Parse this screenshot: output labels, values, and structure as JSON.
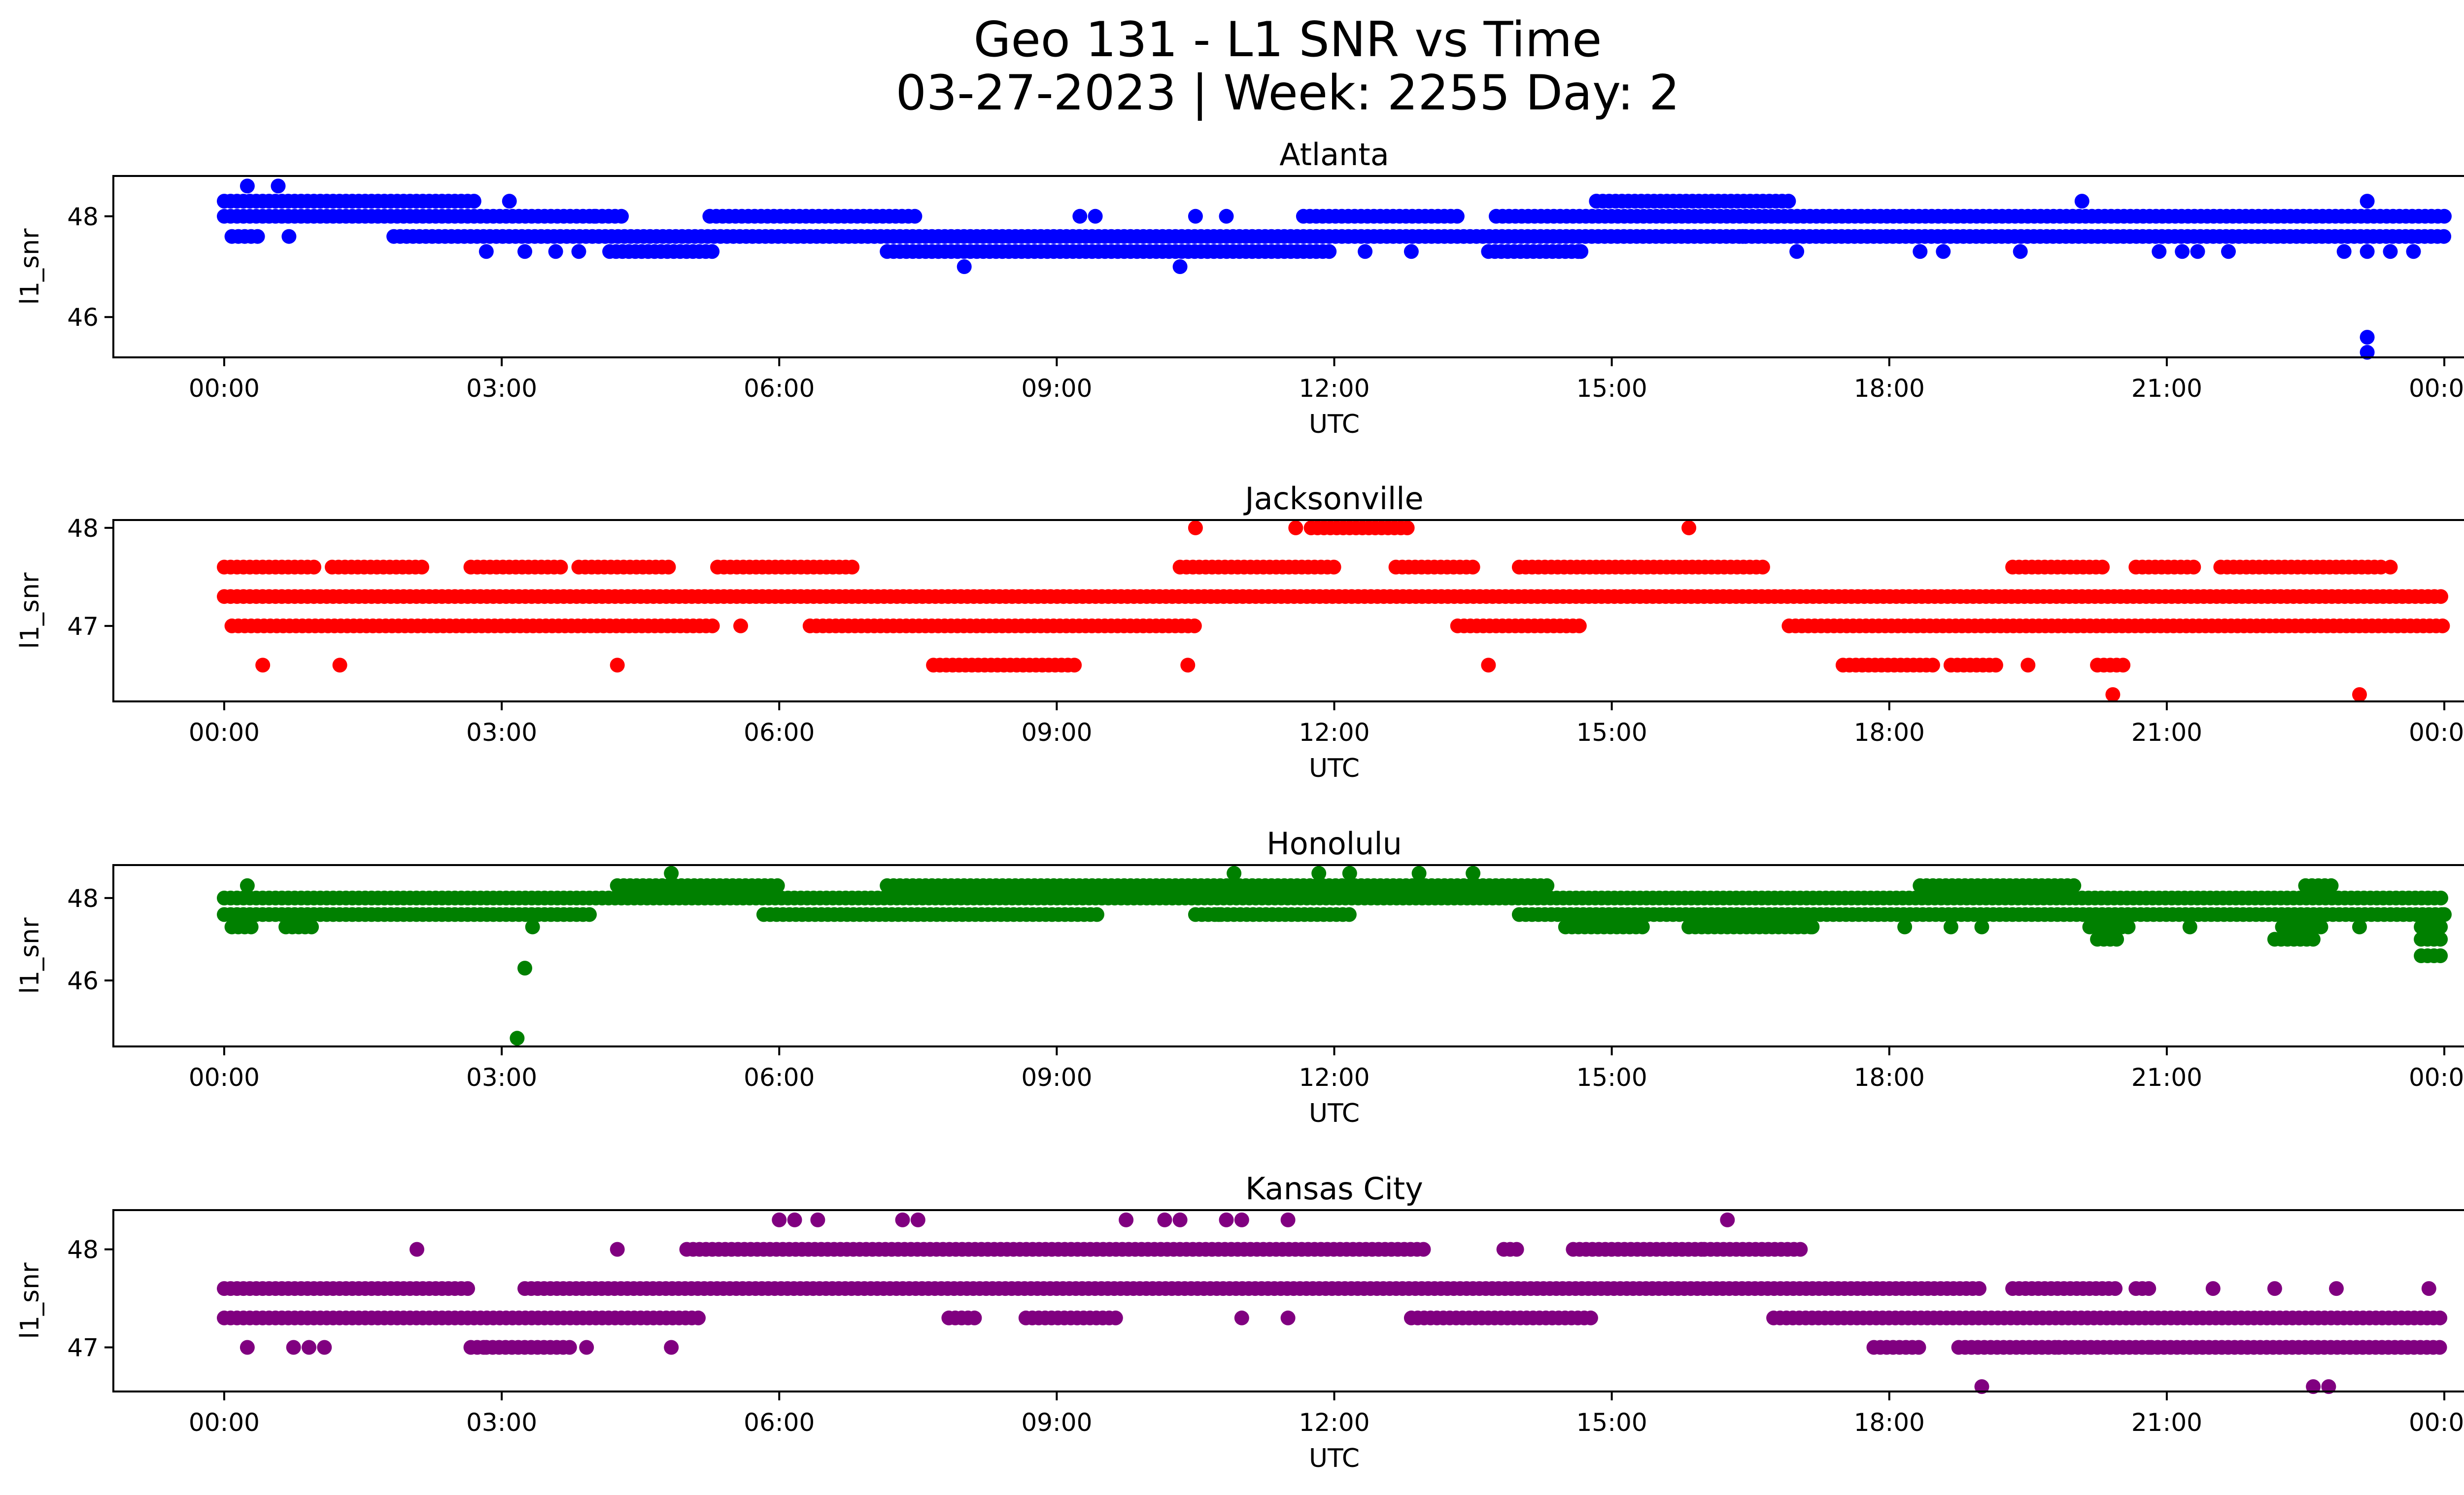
{
  "figure": {
    "title_line1": "Geo 131 - L1 SNR vs Time",
    "title_line2": "03-27-2023 | Week: 2255 Day: 2"
  },
  "chart_data": [
    {
      "type": "scatter",
      "title": "Atlanta",
      "xlabel": "UTC",
      "ylabel": "l1_snr",
      "color": "#0000ff",
      "xlim": [
        "2023-03-27T00:00",
        "2023-03-28T00:00"
      ],
      "ylim": [
        45.2,
        48.8
      ],
      "xticks": [
        "00:00",
        "03:00",
        "06:00",
        "09:00",
        "12:00",
        "15:00",
        "18:00",
        "21:00",
        "00:00"
      ],
      "yticks": [
        46,
        48
      ],
      "bands": [
        {
          "y": 48.3,
          "segments": [
            [
              "00:00",
              "02:40"
            ],
            [
              "14:50",
              "16:55"
            ]
          ]
        },
        {
          "y": 48.0,
          "segments": [
            [
              "00:00",
              "04:20"
            ],
            [
              "05:15",
              "07:30"
            ],
            [
              "11:40",
              "13:20"
            ],
            [
              "13:45",
              "24:00"
            ]
          ]
        },
        {
          "y": 47.6,
          "segments": [
            [
              "00:05",
              "00:25"
            ],
            [
              "01:50",
              "24:00"
            ]
          ]
        },
        {
          "y": 47.3,
          "segments": [
            [
              "04:10",
              "05:20"
            ],
            [
              "07:10",
              "12:00"
            ],
            [
              "13:40",
              "14:40"
            ]
          ]
        }
      ],
      "points": [
        [
          "00:15",
          48.6
        ],
        [
          "00:35",
          48.6
        ],
        [
          "00:42",
          47.6
        ],
        [
          "02:42",
          48.3
        ],
        [
          "02:50",
          47.3
        ],
        [
          "03:05",
          48.3
        ],
        [
          "03:15",
          47.3
        ],
        [
          "03:35",
          47.3
        ],
        [
          "03:50",
          47.3
        ],
        [
          "04:00",
          48.0
        ],
        [
          "08:00",
          47.0
        ],
        [
          "09:15",
          48.0
        ],
        [
          "09:25",
          48.0
        ],
        [
          "10:20",
          47.0
        ],
        [
          "10:30",
          48.0
        ],
        [
          "10:50",
          48.0
        ],
        [
          "12:20",
          47.3
        ],
        [
          "12:50",
          47.3
        ],
        [
          "14:40",
          47.3
        ],
        [
          "14:50",
          48.3
        ],
        [
          "16:25",
          47.6
        ],
        [
          "17:00",
          47.3
        ],
        [
          "18:20",
          47.3
        ],
        [
          "18:35",
          47.3
        ],
        [
          "19:25",
          47.3
        ],
        [
          "20:05",
          48.3
        ],
        [
          "20:55",
          47.3
        ],
        [
          "21:10",
          47.3
        ],
        [
          "21:20",
          47.3
        ],
        [
          "21:40",
          47.3
        ],
        [
          "22:55",
          47.3
        ],
        [
          "23:10",
          48.3
        ],
        [
          "23:10",
          47.3
        ],
        [
          "23:25",
          47.3
        ],
        [
          "23:40",
          47.3
        ],
        [
          "23:10",
          45.6
        ],
        [
          "23:10",
          45.3
        ]
      ]
    },
    {
      "type": "scatter",
      "title": "Jacksonville",
      "xlabel": "UTC",
      "ylabel": "l1_snr",
      "color": "#ff0000",
      "xlim": [
        "2023-03-27T00:00",
        "2023-03-28T00:00"
      ],
      "ylim": [
        46.23,
        48.08
      ],
      "xticks": [
        "00:00",
        "03:00",
        "06:00",
        "09:00",
        "12:00",
        "15:00",
        "18:00",
        "21:00",
        "00:00"
      ],
      "yticks": [
        47,
        48
      ],
      "bands": [
        {
          "y": 48.0,
          "segments": [
            [
              "11:45",
              "12:50"
            ]
          ]
        },
        {
          "y": 47.6,
          "segments": [
            [
              "00:00",
              "01:00"
            ],
            [
              "01:10",
              "02:10"
            ],
            [
              "02:40",
              "03:40"
            ],
            [
              "03:50",
              "04:50"
            ],
            [
              "05:20",
              "06:50"
            ],
            [
              "10:20",
              "12:00"
            ],
            [
              "12:40",
              "13:30"
            ],
            [
              "14:00",
              "16:40"
            ],
            [
              "19:20",
              "20:20"
            ],
            [
              "20:40",
              "21:20"
            ],
            [
              "21:35",
              "23:20"
            ]
          ]
        },
        {
          "y": 47.3,
          "segments": [
            [
              "00:00",
              "24:00"
            ]
          ]
        },
        {
          "y": 47.0,
          "segments": [
            [
              "00:05",
              "05:20"
            ],
            [
              "06:20",
              "10:30"
            ],
            [
              "13:20",
              "14:40"
            ],
            [
              "16:55",
              "24:00"
            ]
          ]
        },
        {
          "y": 46.6,
          "segments": [
            [
              "07:40",
              "09:15"
            ],
            [
              "17:30",
              "18:30"
            ],
            [
              "18:40",
              "19:10"
            ],
            [
              "20:15",
              "20:35"
            ]
          ]
        }
      ],
      "points": [
        [
          "00:25",
          46.6
        ],
        [
          "01:15",
          46.6
        ],
        [
          "04:15",
          46.6
        ],
        [
          "05:35",
          47.0
        ],
        [
          "10:25",
          46.6
        ],
        [
          "10:30",
          48.0
        ],
        [
          "11:35",
          48.0
        ],
        [
          "13:40",
          46.6
        ],
        [
          "15:50",
          48.0
        ],
        [
          "19:30",
          46.6
        ],
        [
          "20:25",
          46.3
        ],
        [
          "23:05",
          46.3
        ],
        [
          "23:25",
          47.6
        ]
      ]
    },
    {
      "type": "scatter",
      "title": "Honolulu",
      "xlabel": "UTC",
      "ylabel": "l1_snr",
      "color": "#008000",
      "xlim": [
        "2023-03-27T00:00",
        "2023-03-28T00:00"
      ],
      "ylim": [
        44.4,
        48.8
      ],
      "xticks": [
        "00:00",
        "03:00",
        "06:00",
        "09:00",
        "12:00",
        "15:00",
        "18:00",
        "21:00",
        "00:00"
      ],
      "yticks": [
        46,
        48
      ],
      "bands": [
        {
          "y": 48.3,
          "segments": [
            [
              "04:15",
              "06:00"
            ],
            [
              "07:10",
              "14:20"
            ],
            [
              "18:20",
              "20:00"
            ],
            [
              "22:30",
              "22:50"
            ]
          ]
        },
        {
          "y": 48.0,
          "segments": [
            [
              "00:00",
              "24:00"
            ]
          ]
        },
        {
          "y": 47.6,
          "segments": [
            [
              "00:00",
              "04:00"
            ],
            [
              "05:50",
              "09:30"
            ],
            [
              "10:30",
              "12:10"
            ],
            [
              "14:00",
              "24:00"
            ]
          ]
        },
        {
          "y": 47.3,
          "segments": [
            [
              "00:05",
              "00:20"
            ],
            [
              "00:40",
              "01:00"
            ],
            [
              "14:30",
              "15:20"
            ],
            [
              "15:50",
              "17:10"
            ],
            [
              "20:10",
              "20:35"
            ],
            [
              "22:15",
              "22:40"
            ],
            [
              "23:45",
              "24:00"
            ]
          ]
        },
        {
          "y": 47.0,
          "segments": [
            [
              "20:15",
              "20:30"
            ],
            [
              "22:10",
              "22:35"
            ],
            [
              "23:45",
              "24:00"
            ]
          ]
        },
        {
          "y": 46.6,
          "segments": [
            [
              "23:45",
              "24:00"
            ]
          ]
        }
      ],
      "points": [
        [
          "00:15",
          48.3
        ],
        [
          "04:50",
          48.6
        ],
        [
          "10:55",
          48.6
        ],
        [
          "11:50",
          48.6
        ],
        [
          "12:10",
          48.6
        ],
        [
          "12:55",
          48.6
        ],
        [
          "13:30",
          48.6
        ],
        [
          "03:15",
          46.3
        ],
        [
          "03:10",
          44.6
        ],
        [
          "03:20",
          47.3
        ],
        [
          "10:45",
          47.6
        ],
        [
          "17:10",
          47.3
        ],
        [
          "18:10",
          47.3
        ],
        [
          "18:40",
          47.3
        ],
        [
          "19:00",
          47.3
        ],
        [
          "21:15",
          47.3
        ],
        [
          "23:05",
          47.3
        ],
        [
          "24:00",
          47.6
        ]
      ]
    },
    {
      "type": "scatter",
      "title": "Kansas City",
      "xlabel": "UTC",
      "ylabel": "l1_snr",
      "color": "#800080",
      "xlim": [
        "2023-03-27T00:00",
        "2023-03-28T00:00"
      ],
      "ylim": [
        46.55,
        48.4
      ],
      "xticks": [
        "00:00",
        "03:00",
        "06:00",
        "09:00",
        "12:00",
        "15:00",
        "18:00",
        "21:00",
        "00:00"
      ],
      "yticks": [
        47,
        48
      ],
      "bands": [
        {
          "y": 48.0,
          "segments": [
            [
              "05:00",
              "13:00"
            ],
            [
              "13:50",
              "14:00"
            ],
            [
              "14:35",
              "16:00"
            ],
            [
              "16:00",
              "17:05"
            ]
          ]
        },
        {
          "y": 47.6,
          "segments": [
            [
              "00:00",
              "02:40"
            ],
            [
              "03:15",
              "19:00"
            ],
            [
              "19:20",
              "20:30"
            ],
            [
              "20:40",
              "20:50"
            ]
          ]
        },
        {
          "y": 47.3,
          "segments": [
            [
              "00:00",
              "05:10"
            ],
            [
              "07:50",
              "08:10"
            ],
            [
              "08:40",
              "09:40"
            ],
            [
              "12:50",
              "14:50"
            ],
            [
              "16:45",
              "24:00"
            ]
          ]
        },
        {
          "y": 47.0,
          "segments": [
            [
              "02:40",
              "02:50"
            ],
            [
              "02:50",
              "03:45"
            ],
            [
              "17:50",
              "18:20"
            ],
            [
              "18:45",
              "19:50"
            ],
            [
              "19:50",
              "20:50"
            ],
            [
              "20:50",
              "24:00"
            ]
          ]
        }
      ],
      "points": [
        [
          "00:15",
          47.0
        ],
        [
          "00:45",
          47.0
        ],
        [
          "00:55",
          47.0
        ],
        [
          "01:05",
          47.0
        ],
        [
          "02:05",
          48.0
        ],
        [
          "03:55",
          47.0
        ],
        [
          "04:15",
          48.0
        ],
        [
          "04:50",
          47.0
        ],
        [
          "06:00",
          48.3
        ],
        [
          "06:10",
          48.3
        ],
        [
          "06:25",
          48.3
        ],
        [
          "07:20",
          48.3
        ],
        [
          "07:30",
          48.3
        ],
        [
          "09:45",
          48.3
        ],
        [
          "10:10",
          48.3
        ],
        [
          "10:20",
          48.3
        ],
        [
          "10:50",
          48.3
        ],
        [
          "11:00",
          48.3
        ],
        [
          "11:30",
          48.3
        ],
        [
          "16:15",
          48.3
        ],
        [
          "11:00",
          47.3
        ],
        [
          "11:30",
          47.3
        ],
        [
          "19:00",
          46.6
        ],
        [
          "22:35",
          46.6
        ],
        [
          "22:45",
          46.6
        ],
        [
          "21:30",
          47.6
        ],
        [
          "22:50",
          47.6
        ],
        [
          "23:50",
          47.6
        ],
        [
          "22:10",
          47.6
        ]
      ]
    }
  ]
}
